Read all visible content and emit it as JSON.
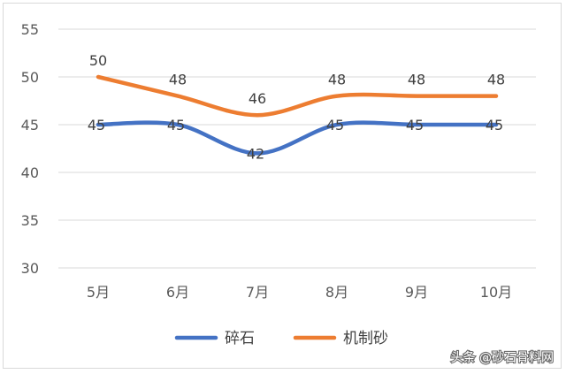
{
  "chart_data": {
    "type": "line",
    "title": "",
    "xlabel": "",
    "ylabel": "",
    "categories": [
      "5月",
      "6月",
      "7月",
      "8月",
      "9月",
      "10月"
    ],
    "ylim": [
      30,
      55
    ],
    "yticks": [
      30,
      35,
      40,
      45,
      50,
      55
    ],
    "grid": true,
    "smooth": true,
    "legend_position": "bottom",
    "series": [
      {
        "name": "碎石",
        "color": "#4472c4",
        "values": [
          45,
          45,
          42,
          45,
          45,
          45
        ]
      },
      {
        "name": "机制砂",
        "color": "#ed7d31",
        "values": [
          50,
          48,
          46,
          48,
          48,
          48
        ]
      }
    ]
  },
  "watermark": {
    "text": "头条 @砂石骨料网"
  }
}
